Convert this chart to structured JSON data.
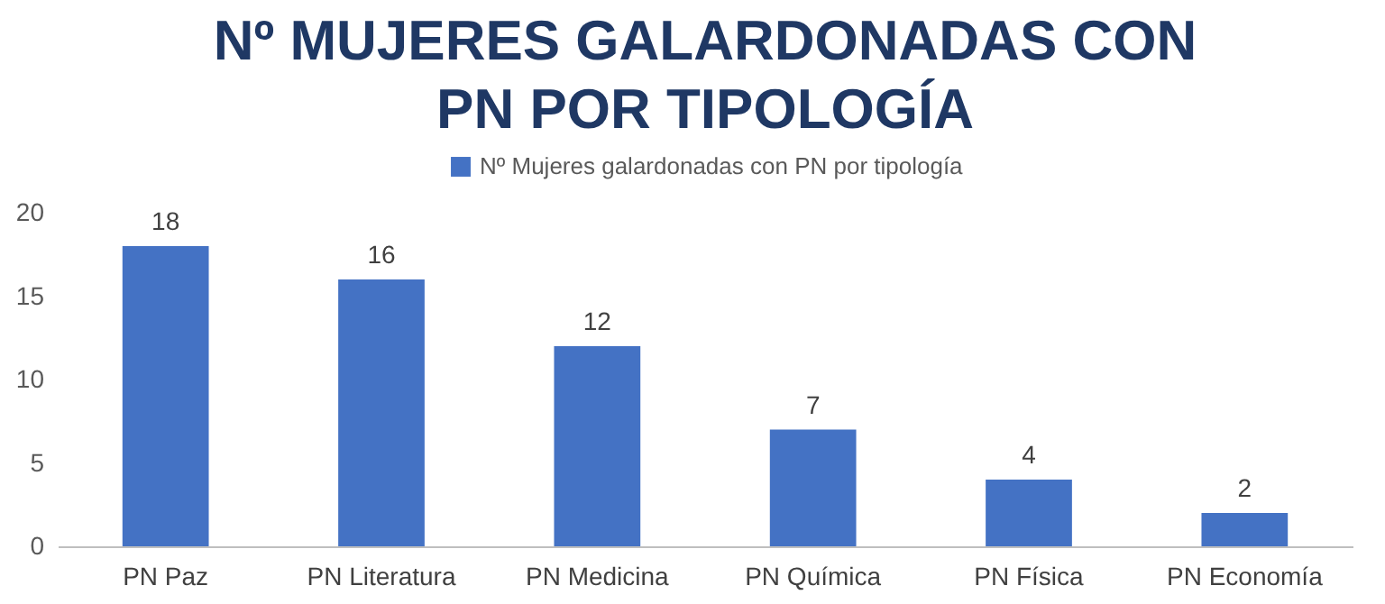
{
  "chart_data": {
    "type": "bar",
    "title": "Nº MUJERES GALARDONADAS CON\nPN POR TIPOLOGÍA",
    "categories": [
      "PN Paz",
      "PN Literatura",
      "PN Medicina",
      "PN Química",
      "PN Física",
      "PN  Economía"
    ],
    "series": [
      {
        "name": "Nº Mujeres galardonadas con PN por tipología",
        "color": "#4472c4",
        "values": [
          18,
          16,
          12,
          7,
          4,
          2
        ]
      }
    ],
    "ylim": [
      0,
      20
    ],
    "yticks": [
      0,
      5,
      10,
      15,
      20
    ],
    "grid": false,
    "legend": "top",
    "data_labels": true
  }
}
